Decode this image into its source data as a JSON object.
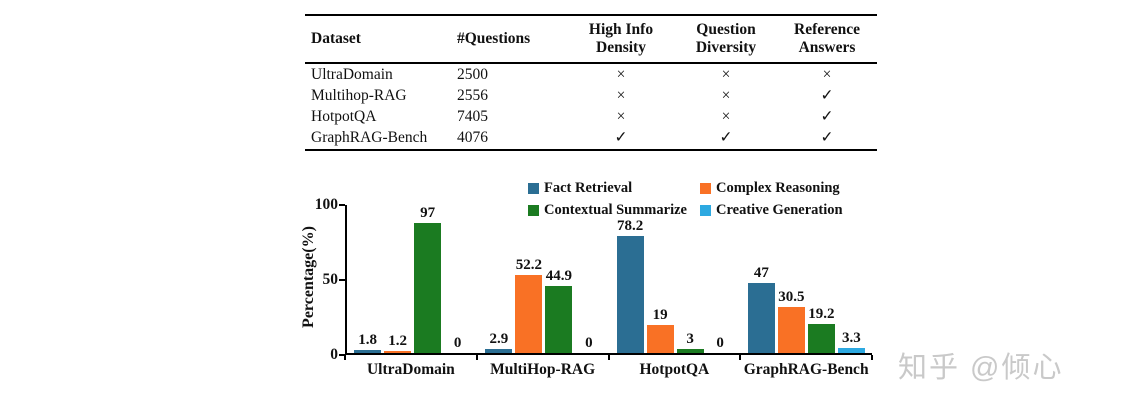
{
  "table": {
    "columns": [
      {
        "label": "Dataset"
      },
      {
        "label": "#Questions"
      },
      {
        "label": "High Info\nDensity"
      },
      {
        "label": "Question\nDiversity"
      },
      {
        "label": "Reference\nAnswers"
      }
    ],
    "rows": [
      {
        "cells": [
          "UltraDomain",
          "2500",
          "×",
          "×",
          "×"
        ]
      },
      {
        "cells": [
          "Multihop-RAG",
          "2556",
          "×",
          "×",
          "✓"
        ]
      },
      {
        "cells": [
          "HotpotQA",
          "7405",
          "×",
          "×",
          "✓"
        ]
      },
      {
        "cells": [
          "GraphRAG-Bench",
          "4076",
          "✓",
          "✓",
          "✓"
        ]
      }
    ]
  },
  "chart_data": {
    "type": "bar",
    "title": "",
    "xlabel": "",
    "ylabel": "Percentage(%)",
    "ylim": [
      0,
      100
    ],
    "yticks": [
      0,
      50,
      100
    ],
    "grid": false,
    "legend_position": "top",
    "categories": [
      "UltraDomain",
      "MultiHop-RAG",
      "HotpotQA",
      "GraphRAG-Bench"
    ],
    "series": [
      {
        "name": "Fact Retrieval",
        "color": "#2B6E93",
        "values": [
          1.8,
          2.9,
          78.2,
          47
        ],
        "labels": [
          "1.8",
          "2.9",
          "78.2",
          "47"
        ]
      },
      {
        "name": "Complex Reasoning",
        "color": "#F97125",
        "values": [
          1.2,
          52.2,
          19,
          30.5
        ],
        "labels": [
          "1.2",
          "52.2",
          "19",
          "30.5"
        ]
      },
      {
        "name": "Contextual Summarize",
        "color": "#1B7B21",
        "values": [
          97,
          44.9,
          3,
          19.2
        ],
        "labels": [
          "97",
          "44.9",
          "3",
          "19.2"
        ]
      },
      {
        "name": "Creative Generation",
        "color": "#2DA9E1",
        "values": [
          0,
          0,
          0,
          3.3
        ],
        "labels": [
          "0",
          "0",
          "0",
          "3.3"
        ]
      }
    ]
  },
  "watermark": {
    "text": "知乎 @倾心",
    "color": "#c9c9c9"
  }
}
